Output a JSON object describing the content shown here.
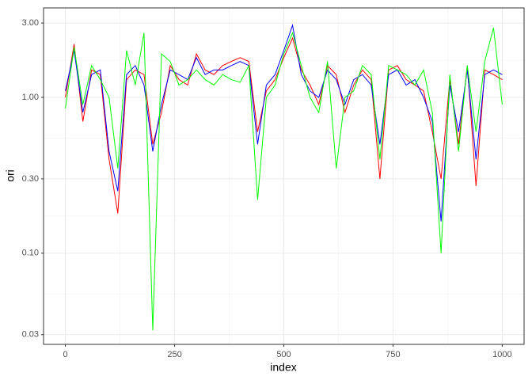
{
  "chart_data": {
    "type": "line",
    "x_label": "index",
    "y_label": "ori",
    "x": [
      0,
      20,
      40,
      60,
      80,
      100,
      120,
      140,
      160,
      180,
      200,
      220,
      240,
      260,
      280,
      300,
      320,
      340,
      360,
      380,
      400,
      420,
      440,
      460,
      480,
      500,
      520,
      540,
      560,
      580,
      600,
      620,
      640,
      660,
      680,
      700,
      720,
      740,
      760,
      780,
      800,
      820,
      840,
      860,
      880,
      900,
      920,
      940,
      960,
      980,
      1000
    ],
    "series": [
      {
        "name": "red",
        "color": "#ff0000",
        "values": [
          1.0,
          2.2,
          0.7,
          1.5,
          1.4,
          0.4,
          0.18,
          1.3,
          1.5,
          1.4,
          0.5,
          0.8,
          1.6,
          1.3,
          1.2,
          1.9,
          1.5,
          1.4,
          1.6,
          1.7,
          1.8,
          1.7,
          0.6,
          1.1,
          1.3,
          1.8,
          2.4,
          1.5,
          1.2,
          0.9,
          1.6,
          1.4,
          0.8,
          1.2,
          1.5,
          1.3,
          0.3,
          1.5,
          1.6,
          1.3,
          1.2,
          1.1,
          0.6,
          0.3,
          1.3,
          0.5,
          1.6,
          0.27,
          1.5,
          1.4,
          1.3
        ]
      },
      {
        "name": "blue",
        "color": "#0000ff",
        "values": [
          1.1,
          2.0,
          0.8,
          1.4,
          1.5,
          0.45,
          0.25,
          1.4,
          1.6,
          1.2,
          0.45,
          0.9,
          1.5,
          1.4,
          1.3,
          1.8,
          1.4,
          1.5,
          1.5,
          1.6,
          1.7,
          1.6,
          0.5,
          1.2,
          1.4,
          2.0,
          2.9,
          1.4,
          1.1,
          1.0,
          1.5,
          1.3,
          0.9,
          1.3,
          1.4,
          1.2,
          0.5,
          1.4,
          1.5,
          1.2,
          1.3,
          1.0,
          0.7,
          0.16,
          1.2,
          0.6,
          1.5,
          0.4,
          1.4,
          1.5,
          1.4
        ]
      },
      {
        "name": "green",
        "color": "#00ff00",
        "values": [
          0.85,
          2.1,
          0.9,
          1.6,
          1.3,
          1.0,
          0.35,
          2.0,
          1.2,
          2.6,
          0.032,
          1.9,
          1.7,
          1.2,
          1.3,
          1.5,
          1.3,
          1.2,
          1.4,
          1.3,
          1.25,
          1.6,
          0.22,
          1.0,
          1.2,
          1.9,
          2.6,
          1.6,
          1.0,
          0.8,
          1.7,
          0.35,
          1.0,
          1.1,
          1.6,
          1.4,
          0.4,
          1.6,
          1.5,
          1.4,
          1.2,
          1.5,
          0.8,
          0.1,
          1.4,
          0.45,
          1.6,
          0.6,
          1.7,
          2.8,
          0.9
        ]
      }
    ],
    "xlim": [
      -50,
      1050
    ],
    "xticks": [
      0,
      250,
      500,
      750,
      1000
    ],
    "x_minor_ticks": [
      125,
      375,
      625,
      875
    ],
    "ylim": [
      0.026,
      3.75
    ],
    "y_log": true,
    "yticks": [
      {
        "value": 0.03,
        "label": "0.03"
      },
      {
        "value": 0.1,
        "label": "0.10"
      },
      {
        "value": 0.3,
        "label": "0.30"
      },
      {
        "value": 1,
        "label": "1.00"
      },
      {
        "value": 3,
        "label": "3.00"
      }
    ],
    "y_minor_ticks": [
      0.0548,
      0.173,
      0.548,
      1.73
    ],
    "grid": true
  }
}
